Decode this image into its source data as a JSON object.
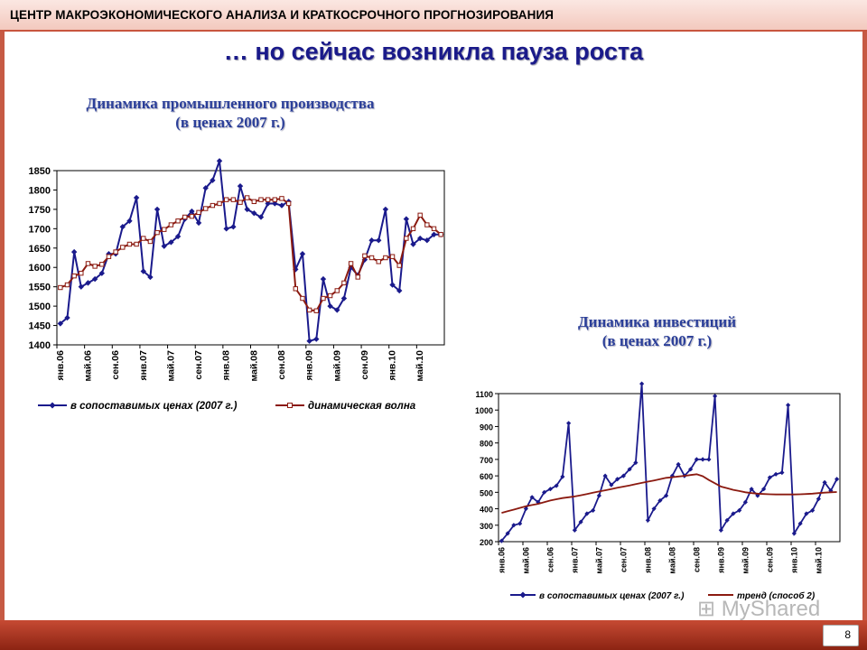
{
  "header": {
    "org_title": "ЦЕНТР МАКРОЭКОНОМИЧЕСКОГО АНАЛИЗА И КРАТКОСРОЧНОГО ПРОГНОЗИРОВАНИЯ"
  },
  "slide": {
    "headline": "… но сейчас возникла пауза роста",
    "page_number": "8"
  },
  "watermark": "MyShared",
  "chart1": {
    "title_line1": "Динамика промышленного производства",
    "title_line2": "(в ценах 2007 г.)"
  },
  "chart2": {
    "title_line1": "Динамика инвестиций",
    "title_line2": "(в ценах 2007 г.)"
  },
  "chart_data": [
    {
      "type": "line",
      "title": "Динамика промышленного производства (в ценах 2007 г.)",
      "ylim": [
        1400,
        1850
      ],
      "yticks": [
        1400,
        1450,
        1500,
        1550,
        1600,
        1650,
        1700,
        1750,
        1800,
        1850
      ],
      "xtick_labels": [
        "янв.06",
        "май.06",
        "сен.06",
        "янв.07",
        "май.07",
        "сен.07",
        "янв.08",
        "май.08",
        "сен.08",
        "янв.09",
        "май.09",
        "сен.09",
        "янв.10",
        "май.10"
      ],
      "xtick_step": 4,
      "legend_position": "bottom",
      "series": [
        {
          "name": "в сопоставимых ценах (2007 г.)",
          "color": "#1a1a8c",
          "marker": "diamond",
          "values": [
            1455,
            1470,
            1640,
            1550,
            1560,
            1570,
            1585,
            1635,
            1635,
            1705,
            1720,
            1780,
            1590,
            1575,
            1750,
            1655,
            1665,
            1680,
            1725,
            1745,
            1715,
            1805,
            1825,
            1875,
            1700,
            1705,
            1810,
            1750,
            1740,
            1730,
            1765,
            1765,
            1760,
            1770,
            1595,
            1635,
            1410,
            1415,
            1570,
            1500,
            1490,
            1520,
            1600,
            1580,
            1620,
            1670,
            1670,
            1750,
            1555,
            1540,
            1725,
            1660,
            1675,
            1670,
            1685,
            1685
          ]
        },
        {
          "name": "динамическая волна",
          "color": "#8b1a10",
          "marker": "square",
          "values": [
            1548,
            1555,
            1578,
            1585,
            1610,
            1603,
            1608,
            1628,
            1640,
            1652,
            1660,
            1660,
            1675,
            1667,
            1690,
            1698,
            1710,
            1720,
            1730,
            1732,
            1742,
            1752,
            1760,
            1765,
            1775,
            1775,
            1768,
            1780,
            1770,
            1775,
            1775,
            1775,
            1778,
            1765,
            1545,
            1520,
            1490,
            1488,
            1520,
            1527,
            1540,
            1560,
            1610,
            1575,
            1630,
            1625,
            1615,
            1625,
            1628,
            1605,
            1675,
            1700,
            1735,
            1710,
            1700,
            1685
          ]
        }
      ]
    },
    {
      "type": "line",
      "title": "Динамика инвестиций (в ценах 2007 г.)",
      "ylim": [
        200,
        1100
      ],
      "yticks": [
        200,
        300,
        400,
        500,
        600,
        700,
        800,
        900,
        1000,
        1100
      ],
      "xtick_labels": [
        "янв.06",
        "май.06",
        "сен.06",
        "янв.07",
        "май.07",
        "сен.07",
        "янв.08",
        "май.08",
        "сен.08",
        "янв.09",
        "май.09",
        "сен.09",
        "янв.10",
        "май.10"
      ],
      "xtick_step": 4,
      "legend_position": "bottom",
      "series": [
        {
          "name": "в сопоставимых ценах (2007 г.)",
          "color": "#1a1a8c",
          "marker": "diamond",
          "values": [
            205,
            250,
            300,
            310,
            400,
            470,
            440,
            500,
            520,
            540,
            595,
            920,
            270,
            320,
            370,
            390,
            480,
            600,
            545,
            580,
            600,
            640,
            680,
            1160,
            330,
            400,
            450,
            480,
            600,
            670,
            600,
            640,
            700,
            700,
            700,
            1085,
            270,
            330,
            370,
            390,
            440,
            520,
            480,
            520,
            590,
            610,
            620,
            1030,
            250,
            310,
            370,
            390,
            460,
            560,
            510,
            580
          ]
        },
        {
          "name": "тренд (способ 2)",
          "color": "#8b1a10",
          "marker": "none",
          "values": [
            375,
            385,
            395,
            405,
            415,
            423,
            430,
            440,
            450,
            458,
            465,
            470,
            475,
            482,
            490,
            498,
            505,
            512,
            520,
            528,
            535,
            542,
            550,
            557,
            565,
            572,
            580,
            588,
            592,
            596,
            600,
            605,
            610,
            598,
            575,
            555,
            535,
            525,
            515,
            508,
            500,
            495,
            492,
            490,
            488,
            487,
            487,
            487,
            487,
            488,
            490,
            492,
            495,
            498,
            500,
            502
          ]
        }
      ]
    }
  ]
}
